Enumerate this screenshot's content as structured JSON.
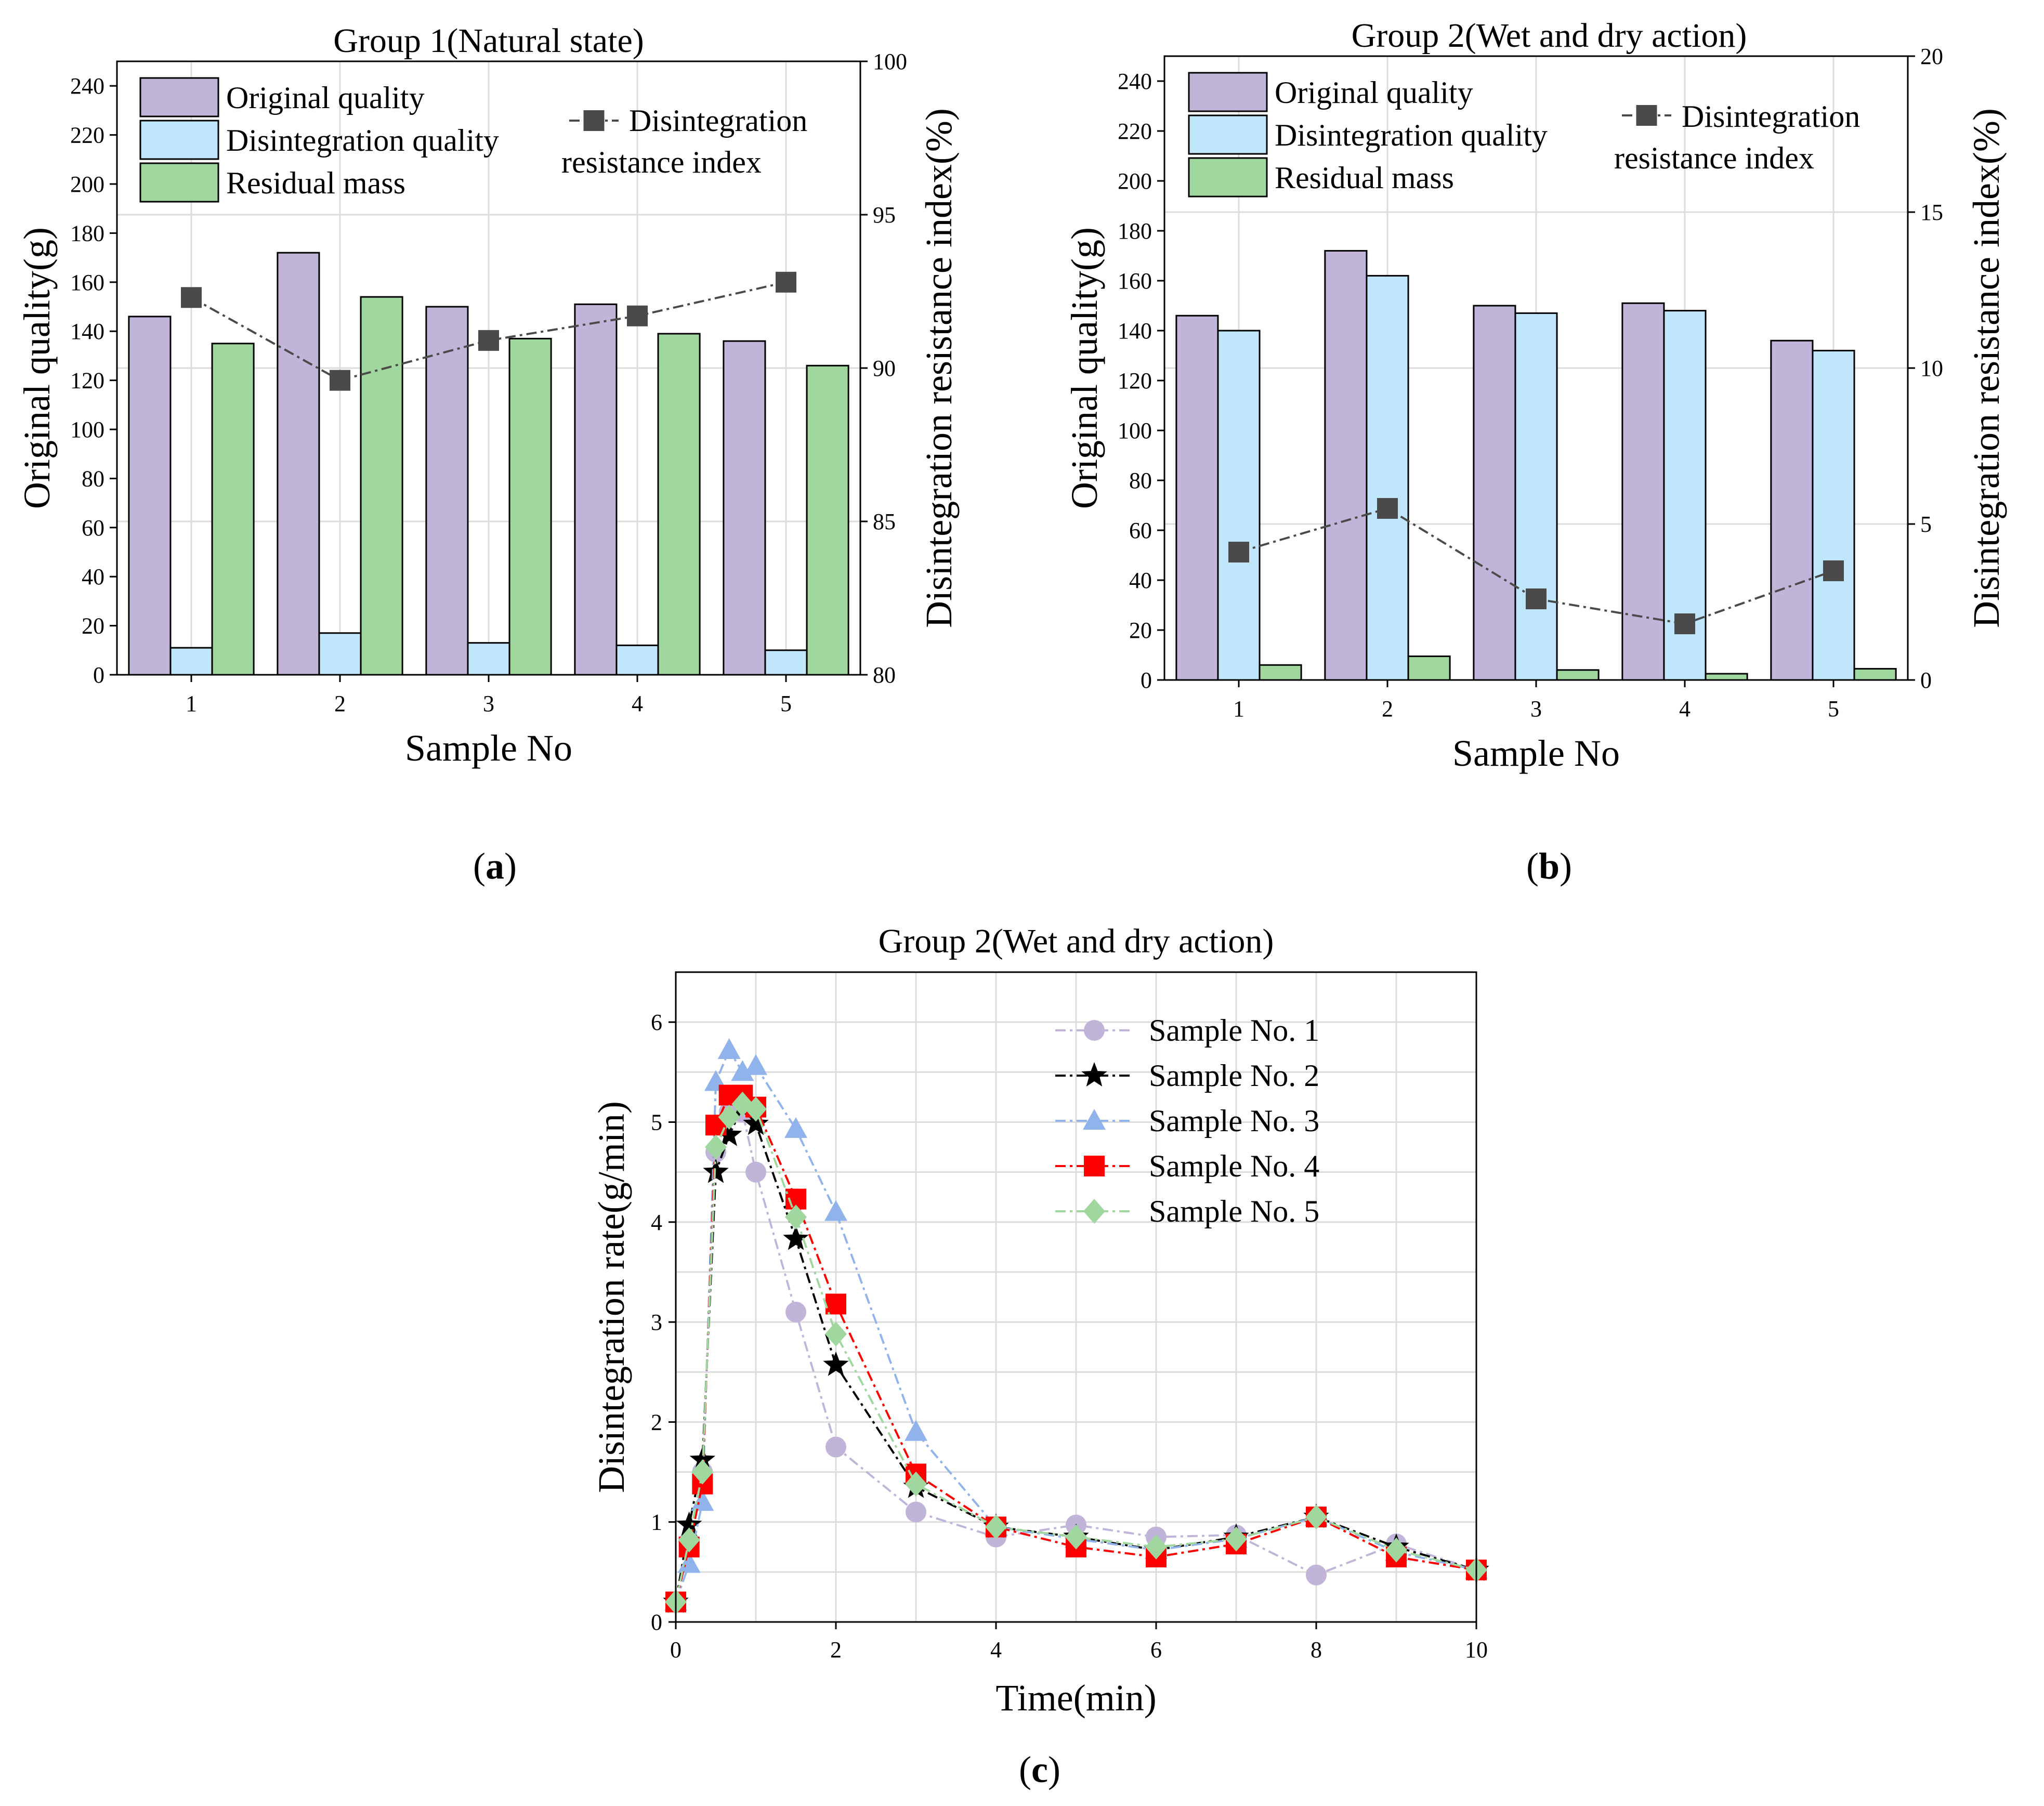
{
  "chart_data": [
    {
      "id": "a",
      "type": "bar",
      "title": "Group 1(Natural state)",
      "caption_letter": "a",
      "xlabel": "Sample No",
      "ylabel": "Original quality(g)",
      "y2label": "Disintegration resistance index(%)",
      "categories": [
        "1",
        "2",
        "3",
        "4",
        "5"
      ],
      "ylim": [
        0,
        250
      ],
      "yticks": [
        0,
        20,
        40,
        60,
        80,
        100,
        120,
        140,
        160,
        180,
        200,
        220,
        240
      ],
      "y2lim": [
        80,
        100
      ],
      "y2ticks": [
        80,
        85,
        90,
        95,
        100
      ],
      "series": [
        {
          "name": "Original quality",
          "color": "#c1b4d9",
          "values": [
            146,
            172,
            150,
            151,
            136
          ]
        },
        {
          "name": "Disintegration quality",
          "color": "#bfe6fb",
          "values": [
            11,
            17,
            13,
            12,
            10
          ]
        },
        {
          "name": "Residual mass",
          "color": "#9fd79f",
          "values": [
            135,
            154,
            137,
            139,
            126
          ]
        }
      ],
      "line": {
        "name": "Disintegration resistance index",
        "color": "#4a4a4a",
        "values": [
          92.3,
          89.6,
          90.9,
          91.7,
          92.8
        ]
      },
      "legend_position": "top"
    },
    {
      "id": "b",
      "type": "bar",
      "title": "Group 2(Wet and dry action)",
      "caption_letter": "b",
      "xlabel": "Sample No",
      "ylabel": "Original quality(g)",
      "y2label": "Disintegration resistance index(%)",
      "categories": [
        "1",
        "2",
        "3",
        "4",
        "5"
      ],
      "ylim": [
        0,
        250
      ],
      "yticks": [
        0,
        20,
        40,
        60,
        80,
        100,
        120,
        140,
        160,
        180,
        200,
        220,
        240
      ],
      "y2lim": [
        0,
        20
      ],
      "y2ticks": [
        0,
        5,
        10,
        15,
        20
      ],
      "series": [
        {
          "name": "Original quality",
          "color": "#c1b4d9",
          "values": [
            146,
            172,
            150,
            151,
            136
          ]
        },
        {
          "name": "Disintegration quality",
          "color": "#bfe6fb",
          "values": [
            140,
            162,
            147,
            148,
            132
          ]
        },
        {
          "name": "Residual mass",
          "color": "#9fd79f",
          "values": [
            6,
            9.5,
            4,
            2.5,
            4.5
          ]
        }
      ],
      "line": {
        "name": "Disintegration resistance index",
        "color": "#4a4a4a",
        "values": [
          4.1,
          5.5,
          2.6,
          1.8,
          3.5
        ]
      },
      "legend_position": "top"
    },
    {
      "id": "c",
      "type": "line",
      "title": "Group 2(Wet and dry action)",
      "caption_letter": "c",
      "xlabel": "Time(min)",
      "ylabel": "Disintegration rate(g/min)",
      "xlim": [
        0,
        10
      ],
      "xticks": [
        0,
        2,
        4,
        6,
        8,
        10
      ],
      "ylim": [
        0,
        6.5
      ],
      "yticks": [
        0,
        1,
        2,
        3,
        4,
        5,
        6
      ],
      "x": [
        0,
        0.1667,
        0.3333,
        0.5,
        0.6667,
        0.8333,
        1,
        1.5,
        2,
        3,
        4,
        5,
        6,
        7,
        8,
        9,
        10
      ],
      "series": [
        {
          "name": "Sample No. 1",
          "color": "#c1b4d9",
          "marker": "circle",
          "dash": "20,8,5,8",
          "values": [
            0.2,
            0.8,
            1.5,
            4.7,
            5.1,
            5.1,
            4.5,
            3.1,
            1.75,
            1.1,
            0.85,
            0.97,
            0.85,
            0.87,
            0.47,
            0.78,
            0.52
          ]
        },
        {
          "name": "Sample No. 2",
          "color": "#000000",
          "marker": "star",
          "dash": "20,8,5,8",
          "values": [
            0.2,
            0.97,
            1.62,
            4.5,
            4.87,
            5.15,
            4.98,
            3.83,
            2.57,
            1.35,
            0.95,
            0.85,
            0.72,
            0.85,
            1.05,
            0.75,
            0.52
          ]
        },
        {
          "name": "Sample No. 3",
          "color": "#8fb3ea",
          "marker": "triangle",
          "dash": "20,8,5,8",
          "values": [
            0.2,
            0.58,
            1.2,
            5.4,
            5.72,
            5.5,
            5.56,
            4.93,
            4.1,
            1.9,
            0.95,
            0.83,
            0.72,
            0.83,
            1.05,
            0.7,
            0.52
          ]
        },
        {
          "name": "Sample No. 4",
          "color": "#ff0000",
          "marker": "square",
          "dash": "20,8,5,8",
          "values": [
            0.2,
            0.75,
            1.38,
            4.97,
            5.27,
            5.27,
            5.15,
            4.23,
            3.18,
            1.48,
            0.95,
            0.75,
            0.65,
            0.78,
            1.05,
            0.65,
            0.52
          ]
        },
        {
          "name": "Sample No. 5",
          "color": "#9fd79f",
          "marker": "diamond",
          "dash": "20,8,5,8",
          "values": [
            0.2,
            0.82,
            1.5,
            4.75,
            5.05,
            5.18,
            5.13,
            4.05,
            2.88,
            1.38,
            0.95,
            0.85,
            0.75,
            0.83,
            1.05,
            0.72,
            0.52
          ]
        }
      ],
      "legend_position": "top-right"
    }
  ]
}
